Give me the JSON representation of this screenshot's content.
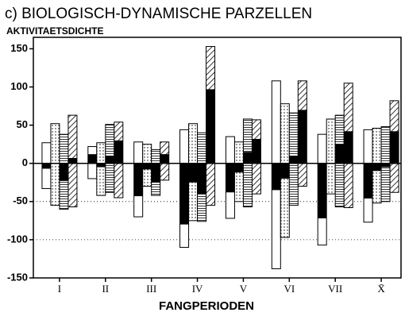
{
  "chart_data": {
    "type": "pattern_bar",
    "title": "c)  BIOLOGISCH-DYNAMISCHE PARZELLEN",
    "y_label": "AKTIVITAETSDICHTE",
    "x_label": "FANGPERIODEN",
    "categories": [
      "I",
      "II",
      "III",
      "IV",
      "V",
      "VI",
      "VII",
      "X̄"
    ],
    "ylim": [
      -150,
      165
    ],
    "yticks": [
      -150,
      -100,
      -50,
      0,
      50,
      100,
      150
    ],
    "grid_lines": [
      -50,
      -100
    ],
    "series": [
      {
        "pattern": "open",
        "color": "#000000",
        "positive": [
          27,
          22,
          28,
          44,
          35,
          108,
          38,
          44
        ],
        "negative": [
          -33,
          -20,
          -70,
          -110,
          -72,
          -138,
          -107,
          -77
        ],
        "net": [
          -7,
          12,
          -43,
          -80,
          -38,
          -35,
          -72,
          -46
        ]
      },
      {
        "pattern": "dots",
        "color": "#000000",
        "positive": [
          52,
          27,
          25,
          52,
          28,
          78,
          58,
          46
        ],
        "negative": [
          -55,
          -42,
          -30,
          -75,
          -50,
          -97,
          -40,
          -52
        ],
        "net": [
          null,
          -5,
          -8,
          -25,
          -12,
          -20,
          null,
          -10
        ]
      },
      {
        "pattern": "horizontal",
        "color": "#000000",
        "positive": [
          38,
          51,
          18,
          40,
          58,
          66,
          63,
          48
        ],
        "negative": [
          -60,
          -38,
          -42,
          -76,
          -57,
          -55,
          -57,
          -50
        ],
        "net": [
          -23,
          10,
          -25,
          -40,
          15,
          10,
          25,
          -5
        ]
      },
      {
        "pattern": "diagonal",
        "color": "#000000",
        "positive": [
          63,
          54,
          28,
          153,
          57,
          108,
          105,
          82
        ],
        "negative": [
          -57,
          -45,
          -22,
          -55,
          -40,
          -30,
          -58,
          -38
        ],
        "net": [
          7,
          30,
          12,
          97,
          32,
          70,
          42,
          42
        ]
      }
    ]
  }
}
